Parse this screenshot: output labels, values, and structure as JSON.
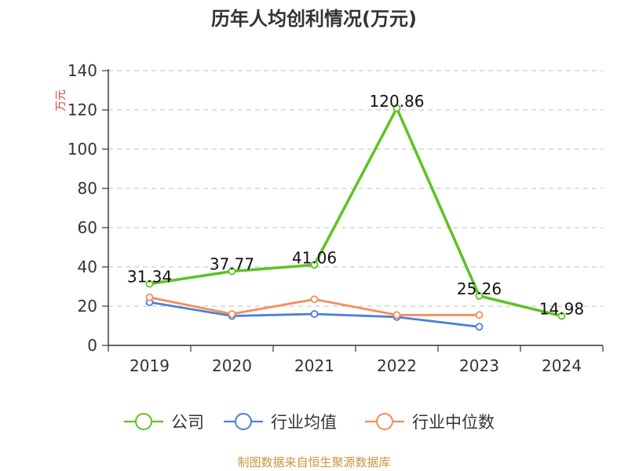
{
  "chart_data": {
    "type": "line",
    "title": "历年人均创利情况(万元)",
    "ylabel": "万元",
    "xlabel": "",
    "categories": [
      "2019",
      "2020",
      "2021",
      "2022",
      "2023",
      "2024"
    ],
    "ylim": [
      0,
      140
    ],
    "yticks": [
      0,
      20,
      40,
      60,
      80,
      100,
      120,
      140
    ],
    "grid": "horizontal-dashed",
    "legend_position": "bottom",
    "series": [
      {
        "name": "公司",
        "color": "#5cc322",
        "values": [
          31.34,
          37.77,
          41.06,
          120.86,
          25.26,
          14.98
        ],
        "labels": [
          "31.34",
          "37.77",
          "41.06",
          "120.86",
          "25.26",
          "14.98"
        ]
      },
      {
        "name": "行业均值",
        "color": "#4c7fd9",
        "values": [
          22,
          15,
          16,
          14.5,
          9.5,
          null
        ]
      },
      {
        "name": "行业中位数",
        "color": "#f58d5b",
        "values": [
          24.5,
          16,
          23.5,
          15.5,
          15.5,
          null
        ]
      }
    ]
  },
  "footer": {
    "source": "制图数据来自恒生聚源数据库"
  }
}
